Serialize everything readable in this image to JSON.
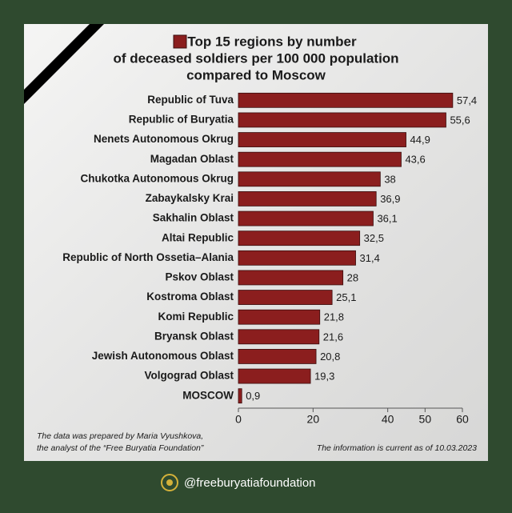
{
  "chart_data": {
    "type": "bar",
    "orientation": "horizontal",
    "title": [
      "Top 15 regions by number",
      "of deceased soldiers per 100 000 population",
      "compared to Moscow"
    ],
    "categories": [
      "Republic of Tuva",
      "Republic of Buryatia",
      "Nenets Autonomous Okrug",
      "Magadan Oblast",
      "Chukotka Autonomous Okrug",
      "Zabaykalsky Krai",
      "Sakhalin Oblast",
      "Altai Republic",
      "Republic of North Ossetia–Alania",
      "Pskov Oblast",
      "Kostroma Oblast",
      "Komi Republic",
      "Bryansk Oblast",
      "Jewish Autonomous Oblast",
      "Volgograd Oblast",
      "MOSCOW"
    ],
    "values": [
      57.4,
      55.6,
      44.9,
      43.6,
      38,
      36.9,
      36.1,
      32.5,
      31.4,
      28,
      25.1,
      21.8,
      21.6,
      20.8,
      19.3,
      0.9
    ],
    "value_labels": [
      "57,4",
      "55,6",
      "44,9",
      "43,6",
      "38",
      "36,9",
      "36,1",
      "32,5",
      "31,4",
      "28",
      "25,1",
      "21,8",
      "21,6",
      "20,8",
      "19,3",
      "0,9"
    ],
    "color": "#8b1e1e",
    "xlim": [
      0,
      60
    ],
    "xticks": [
      0,
      20,
      40,
      50,
      60
    ],
    "grid": false,
    "notes": [
      "The data was prepared by Maria Vyushkova,",
      "the analyst of the “Free Buryatia Foundation”"
    ],
    "date_note": "The information is current as of 10.03.2023"
  },
  "footer": {
    "handle": "@freeburyatiafoundation"
  }
}
